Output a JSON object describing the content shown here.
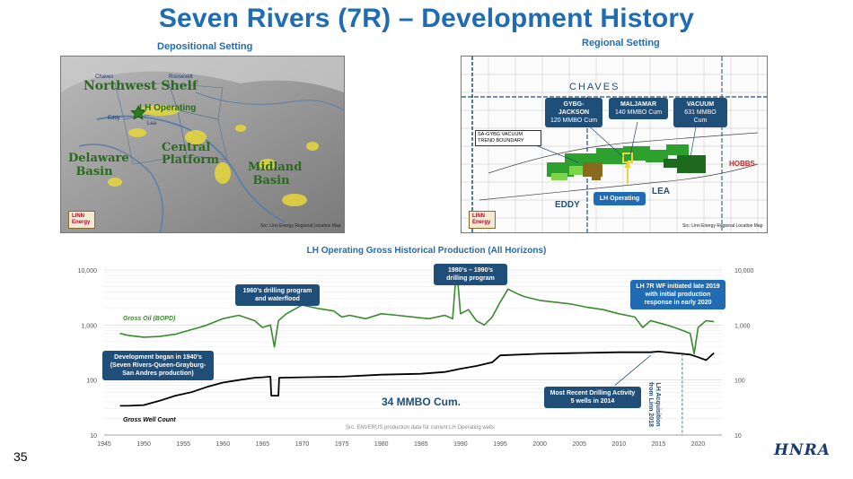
{
  "title": "Seven Rivers (7R) – Development History",
  "depositional": {
    "heading": "Depositional Setting",
    "labels": {
      "northwest_shelf": "Northwest Shelf",
      "lh_operating": "LH Operating",
      "chaves": "Chaves",
      "roosevelt": "Roosevelt",
      "eddy": "Eddy",
      "lea": "Lea",
      "central_platform": "Central Platform",
      "delaware_basin": "Delaware Basin",
      "midland_basin": "Midland Basin"
    },
    "logo": "LINN Energy",
    "source": "Src: Linn Energy Regional Location Map"
  },
  "regional": {
    "heading": "Regional Setting",
    "chaves": "CHAVES",
    "eddy": "EDDY",
    "lea": "LEA",
    "hobbs": "HOBBS",
    "boundary": "SA-GYBG VACUUM TREND BOUNDARY",
    "fields": [
      {
        "name": "GYBG-JACKSON",
        "cum": "120 MMBO Cum"
      },
      {
        "name": "MALJAMAR",
        "cum": "140 MMBO Cum"
      },
      {
        "name": "VACUUM",
        "cum": "631 MMBO Cum"
      }
    ],
    "lh_operating": "LH Operating",
    "logo": "LINN Energy",
    "source": "Src: Linn Energy Regional Location Map"
  },
  "chart_data": {
    "type": "line",
    "title": "LH Operating Gross Historical Production (All Horizons)",
    "xlabel": "",
    "ylabel": "",
    "yscale": "log",
    "ylim": [
      10,
      10000
    ],
    "xlim": [
      1945,
      2023
    ],
    "x_ticks": [
      "1945",
      "1950",
      "1955",
      "1960",
      "1965",
      "1970",
      "1975",
      "1980",
      "1985",
      "1990",
      "1995",
      "2000",
      "2005",
      "2010",
      "2015",
      "2020"
    ],
    "y_ticks_left": [
      "10,000",
      "1,000",
      "100",
      "10"
    ],
    "y_ticks_right": [
      "10,000",
      "1,000",
      "100",
      "10"
    ],
    "y_tick_values": [
      10000,
      1000,
      100,
      10
    ],
    "series": [
      {
        "name": "Gross Oil (BOPD)",
        "color": "#3a8a2e",
        "x": [
          1947,
          1948,
          1950,
          1952,
          1954,
          1955,
          1957,
          1958,
          1960,
          1962,
          1964,
          1965,
          1966,
          1966.5,
          1967,
          1968,
          1970,
          1972,
          1974,
          1975,
          1976,
          1978,
          1980,
          1982,
          1984,
          1986,
          1988,
          1989,
          1989.5,
          1990,
          1991,
          1992,
          1993,
          1994,
          1995,
          1996,
          1997,
          1998,
          2000,
          2002,
          2004,
          2006,
          2008,
          2010,
          2012,
          2013,
          2014,
          2015,
          2016,
          2017,
          2018,
          2019,
          2019.5,
          2020,
          2021,
          2022
        ],
        "values": [
          700,
          650,
          600,
          620,
          680,
          750,
          900,
          1000,
          1300,
          1500,
          1200,
          900,
          1000,
          400,
          1200,
          1600,
          2300,
          2000,
          1800,
          1400,
          1500,
          1300,
          1600,
          1500,
          1400,
          1300,
          1500,
          1300,
          11000,
          1600,
          1900,
          1200,
          1000,
          1400,
          2600,
          4500,
          3800,
          3300,
          2800,
          2600,
          2400,
          2100,
          1900,
          1600,
          1400,
          900,
          1200,
          1100,
          1000,
          900,
          800,
          700,
          300,
          900,
          1200,
          1150
        ]
      },
      {
        "name": "Gross Well Count",
        "color": "#000000",
        "x": [
          1947,
          1948,
          1950,
          1952,
          1954,
          1956,
          1958,
          1960,
          1962,
          1964,
          1965,
          1966,
          1966.1,
          1967,
          1967.1,
          1970,
          1975,
          1980,
          1985,
          1988,
          1990,
          1992,
          1994,
          1995,
          2000,
          2005,
          2010,
          2014,
          2015,
          2018,
          2019,
          2020,
          2021,
          2022
        ],
        "values": [
          34,
          34,
          35,
          42,
          52,
          60,
          75,
          90,
          100,
          110,
          112,
          115,
          52,
          52,
          110,
          112,
          115,
          125,
          130,
          140,
          160,
          180,
          210,
          280,
          300,
          310,
          320,
          320,
          330,
          300,
          290,
          260,
          230,
          310
        ]
      }
    ],
    "annotations": [
      {
        "text": "Development began in 1940’s (Seven Rivers-Queen-Grayburg-San Andres production)"
      },
      {
        "text": "1960’s drilling program and waterflood"
      },
      {
        "text": "1980’s – 1990’s drilling program"
      },
      {
        "text": "LH 7R WF initiated late 2019 with initial production response in early 2020"
      },
      {
        "text": "Most Recent Drilling Activity 5 wells in 2014"
      },
      {
        "text": "LH Acquisition from Linn 2018"
      }
    ],
    "cumulative": "34 MMBO Cum.",
    "source": "Src: ENVERUS production data for current LH Operating wells"
  },
  "page_number": "35",
  "company_logo": "HNRA"
}
